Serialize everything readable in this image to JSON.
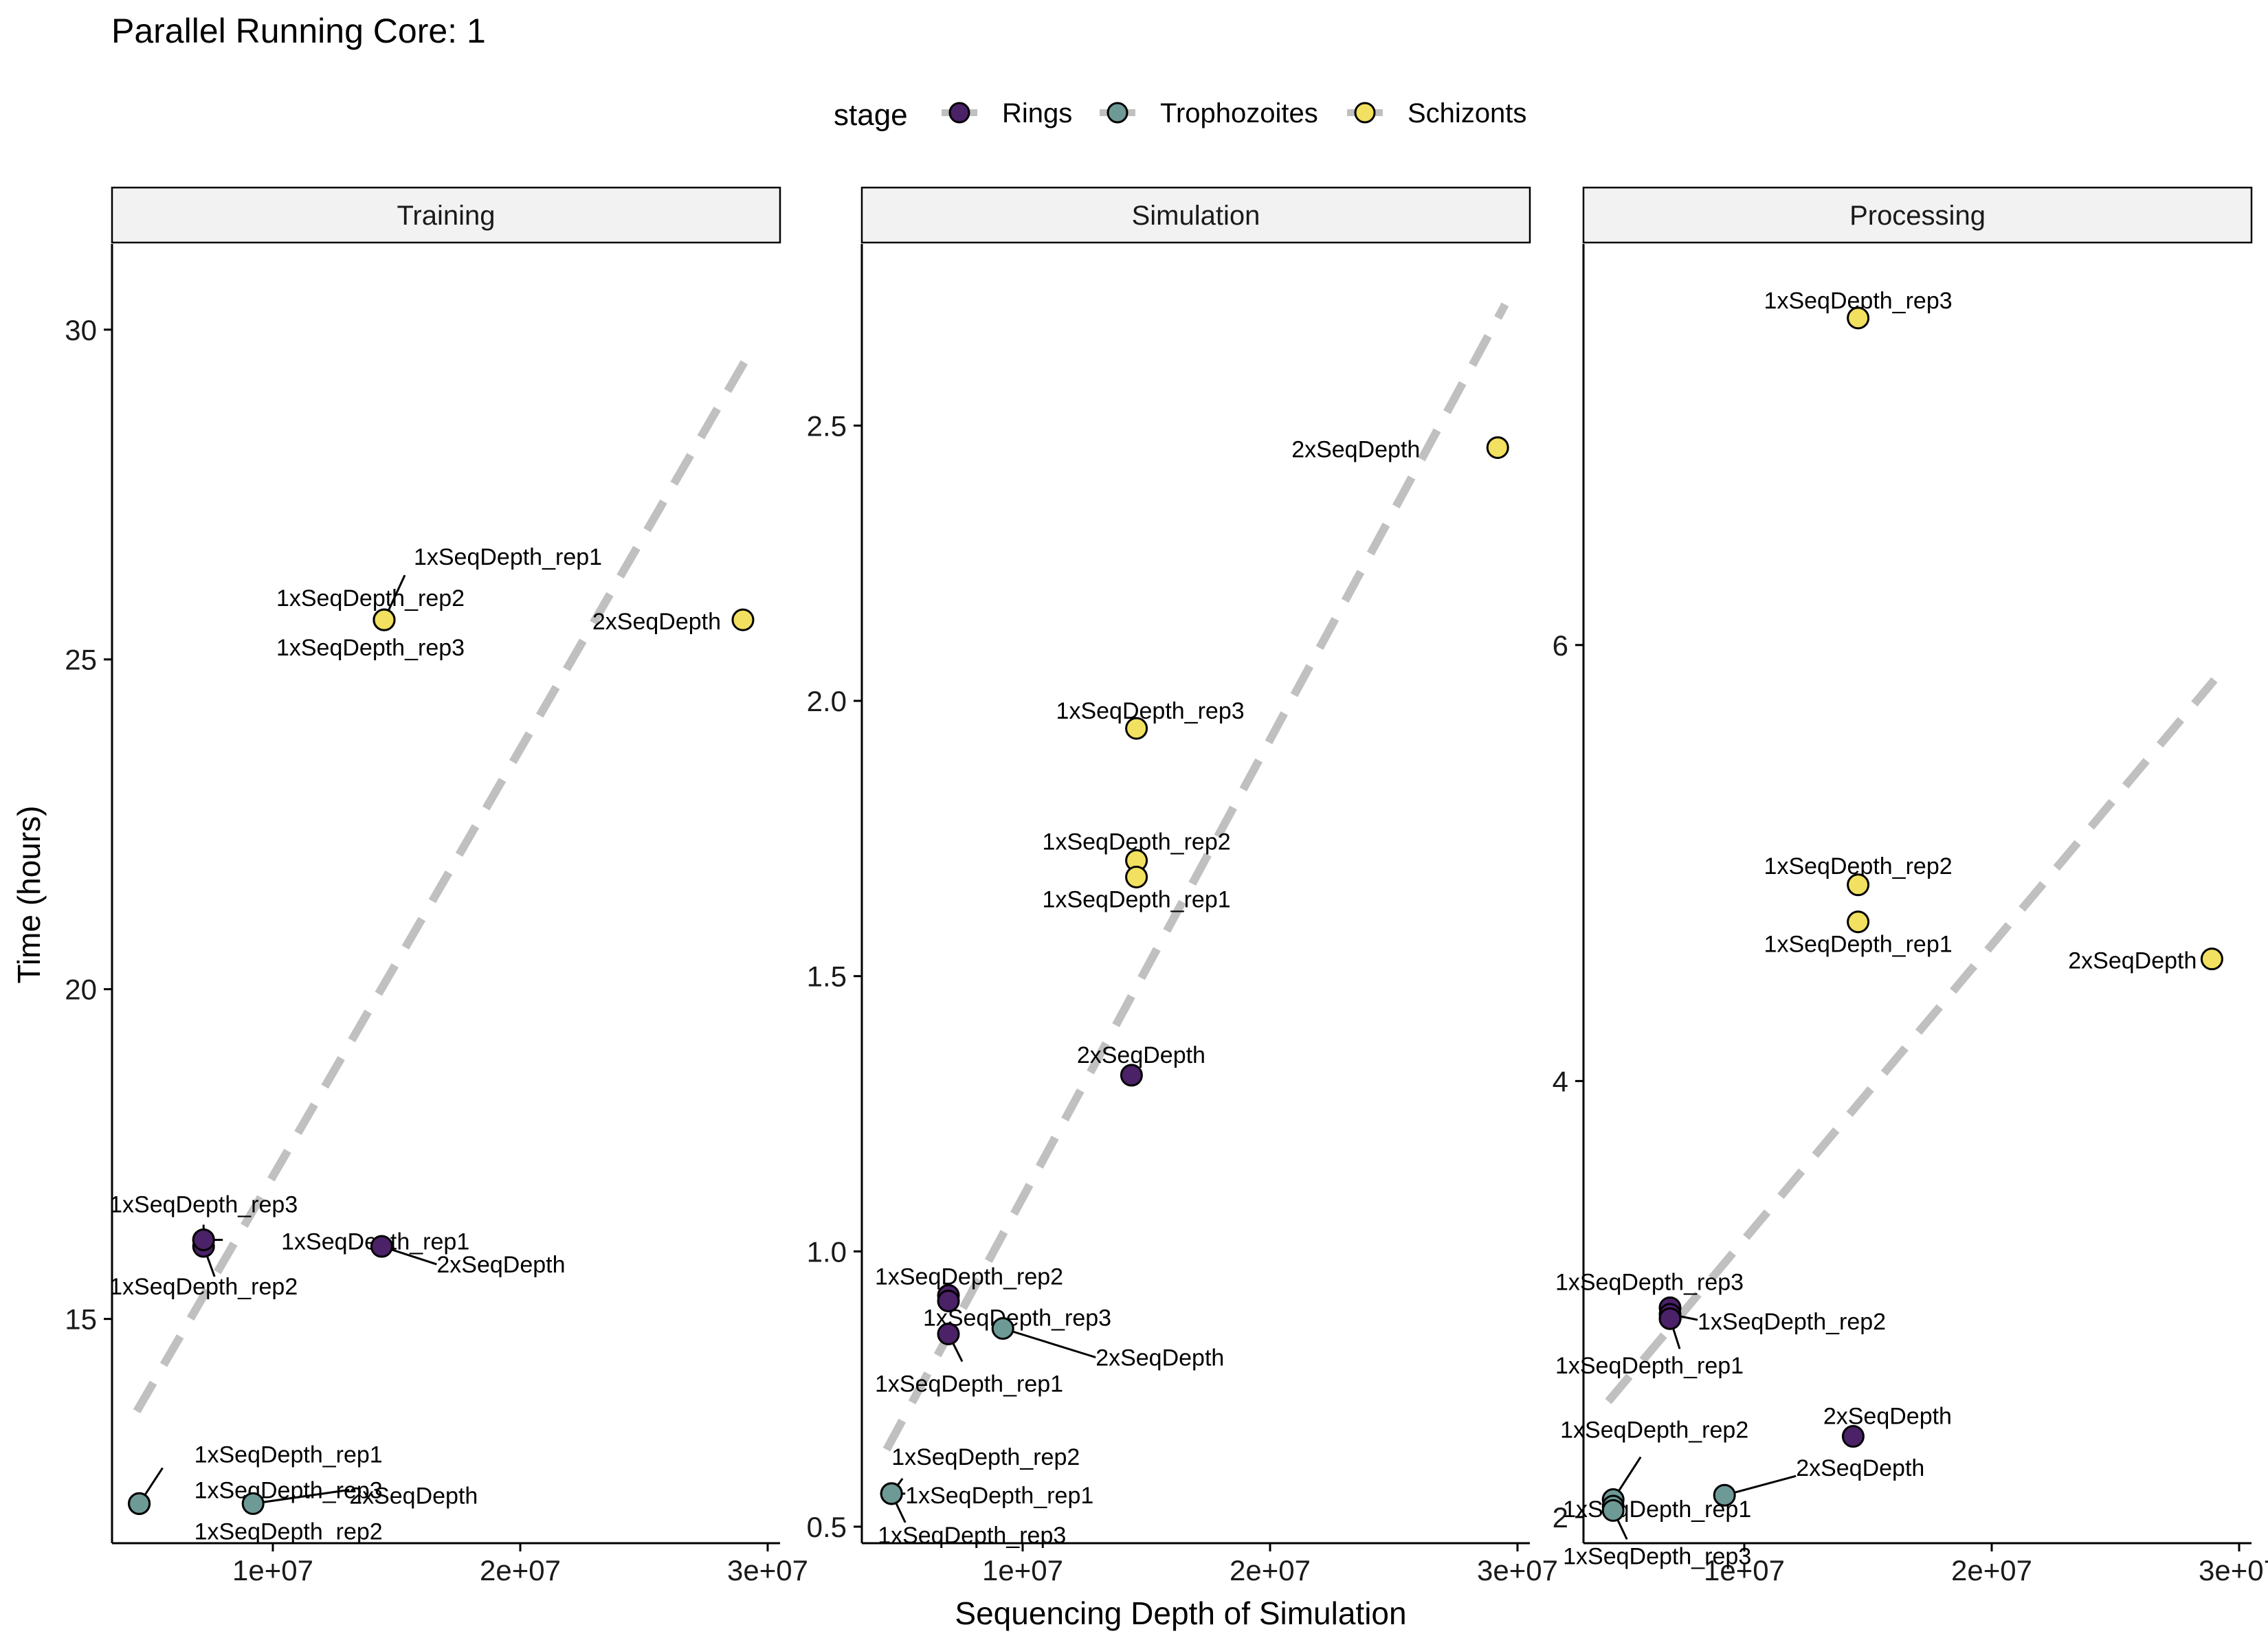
{
  "title": "Parallel Running Core: 1",
  "xlabel": "Sequencing Depth of Simulation",
  "ylabel": "Time (hours)",
  "legend": {
    "title": "stage",
    "position": "top",
    "entries": [
      {
        "name": "Rings",
        "color": "#4B2168"
      },
      {
        "name": "Trophozoites",
        "color": "#6E9A96"
      },
      {
        "name": "Schizonts",
        "color": "#F2E060"
      }
    ]
  },
  "colors": {
    "Rings": "#4B2168",
    "Trophozoites": "#6E9A96",
    "Schizonts": "#F2E060",
    "trend_line": "#C0C0C0",
    "strip_fill": "#F2F2F2"
  },
  "chart_data": [
    {
      "type": "scatter",
      "panel": "Training",
      "xlim": [
        3500000,
        30500000
      ],
      "ylim": [
        11.6,
        31.3
      ],
      "x_ticks": [
        10000000,
        20000000,
        30000000
      ],
      "x_tick_labels": [
        "1e+07",
        "2e+07",
        "3e+07"
      ],
      "y_ticks": [
        15,
        20,
        25,
        30
      ],
      "y_tick_labels": [
        "15",
        "20",
        "25",
        "30"
      ],
      "trend_line": {
        "style": "dashed",
        "x": [
          4500000,
          29200000
        ],
        "y": [
          13.6,
          29.6
        ]
      },
      "points": [
        {
          "stage": "Schizonts",
          "label": "1xSeqDepth_rep1",
          "x": 14500000,
          "y": 25.6
        },
        {
          "stage": "Schizonts",
          "label": "1xSeqDepth_rep2",
          "x": 14500000,
          "y": 25.6
        },
        {
          "stage": "Schizonts",
          "label": "1xSeqDepth_rep3",
          "x": 14500000,
          "y": 25.6
        },
        {
          "stage": "Schizonts",
          "label": "2xSeqDepth",
          "x": 29000000,
          "y": 25.6
        },
        {
          "stage": "Rings",
          "label": "1xSeqDepth_rep3",
          "x": 7200000,
          "y": 16.2
        },
        {
          "stage": "Rings",
          "label": "1xSeqDepth_rep2",
          "x": 7200000,
          "y": 16.1
        },
        {
          "stage": "Rings",
          "label": "1xSeqDepth_rep1",
          "x": 7200000,
          "y": 16.2
        },
        {
          "stage": "Rings",
          "label": "2xSeqDepth",
          "x": 14400000,
          "y": 16.1
        },
        {
          "stage": "Trophozoites",
          "label": "1xSeqDepth_rep1",
          "x": 4600000,
          "y": 12.2
        },
        {
          "stage": "Trophozoites",
          "label": "1xSeqDepth_rep3",
          "x": 4600000,
          "y": 12.2
        },
        {
          "stage": "Trophozoites",
          "label": "1xSeqDepth_rep2",
          "x": 4600000,
          "y": 12.2
        },
        {
          "stage": "Trophozoites",
          "label": "2xSeqDepth",
          "x": 9200000,
          "y": 12.2
        }
      ]
    },
    {
      "type": "scatter",
      "panel": "Simulation",
      "xlim": [
        3500000,
        30500000
      ],
      "ylim": [
        0.47,
        2.83
      ],
      "x_ticks": [
        10000000,
        20000000,
        30000000
      ],
      "x_tick_labels": [
        "1e+07",
        "2e+07",
        "3e+07"
      ],
      "y_ticks": [
        0.5,
        1.0,
        1.5,
        2.0,
        2.5
      ],
      "y_tick_labels": [
        "0.5",
        "1.0",
        "1.5",
        "2.0",
        "2.5"
      ],
      "trend_line": {
        "style": "dashed",
        "x": [
          4500000,
          29500000
        ],
        "y": [
          0.64,
          2.72
        ]
      },
      "points": [
        {
          "stage": "Schizonts",
          "label": "2xSeqDepth",
          "x": 29200000,
          "y": 2.46
        },
        {
          "stage": "Schizonts",
          "label": "1xSeqDepth_rep3",
          "x": 14600000,
          "y": 1.95
        },
        {
          "stage": "Schizonts",
          "label": "1xSeqDepth_rep2",
          "x": 14600000,
          "y": 1.71
        },
        {
          "stage": "Schizonts",
          "label": "1xSeqDepth_rep1",
          "x": 14600000,
          "y": 1.68
        },
        {
          "stage": "Rings",
          "label": "2xSeqDepth",
          "x": 14400000,
          "y": 1.32
        },
        {
          "stage": "Rings",
          "label": "1xSeqDepth_rep2",
          "x": 7000000,
          "y": 0.92
        },
        {
          "stage": "Rings",
          "label": "1xSeqDepth_rep3",
          "x": 7000000,
          "y": 0.91
        },
        {
          "stage": "Rings",
          "label": "1xSeqDepth_rep1",
          "x": 7000000,
          "y": 0.85
        },
        {
          "stage": "Trophozoites",
          "label": "2xSeqDepth",
          "x": 9200000,
          "y": 0.86
        },
        {
          "stage": "Trophozoites",
          "label": "1xSeqDepth_rep2",
          "x": 4700000,
          "y": 0.56
        },
        {
          "stage": "Trophozoites",
          "label": "1xSeqDepth_rep1",
          "x": 4700000,
          "y": 0.56
        },
        {
          "stage": "Trophozoites",
          "label": "1xSeqDepth_rep3",
          "x": 4700000,
          "y": 0.56
        }
      ]
    },
    {
      "type": "scatter",
      "panel": "Processing",
      "xlim": [
        3500000,
        30500000
      ],
      "ylim": [
        1.88,
        7.84
      ],
      "x_ticks": [
        10000000,
        20000000,
        30000000
      ],
      "x_tick_labels": [
        "1e+07",
        "2e+07",
        "3e+07"
      ],
      "y_ticks": [
        2,
        4,
        6
      ],
      "y_tick_labels": [
        "2",
        "4",
        "6"
      ],
      "trend_line": {
        "style": "dashed",
        "x": [
          4500000,
          29000000
        ],
        "y": [
          2.53,
          5.84
        ]
      },
      "points": [
        {
          "stage": "Schizonts",
          "label": "1xSeqDepth_rep3",
          "x": 14600000,
          "y": 7.5
        },
        {
          "stage": "Schizonts",
          "label": "1xSeqDepth_rep2",
          "x": 14600000,
          "y": 4.9
        },
        {
          "stage": "Schizonts",
          "label": "1xSeqDepth_rep1",
          "x": 14600000,
          "y": 4.73
        },
        {
          "stage": "Schizonts",
          "label": "2xSeqDepth",
          "x": 28900000,
          "y": 4.56
        },
        {
          "stage": "Rings",
          "label": "1xSeqDepth_rep3",
          "x": 7000000,
          "y": 2.96
        },
        {
          "stage": "Rings",
          "label": "1xSeqDepth_rep2",
          "x": 7000000,
          "y": 2.93
        },
        {
          "stage": "Rings",
          "label": "1xSeqDepth_rep1",
          "x": 7000000,
          "y": 2.91
        },
        {
          "stage": "Rings",
          "label": "2xSeqDepth",
          "x": 14400000,
          "y": 2.37
        },
        {
          "stage": "Trophozoites",
          "label": "1xSeqDepth_rep2",
          "x": 4700000,
          "y": 2.08
        },
        {
          "stage": "Trophozoites",
          "label": "1xSeqDepth_rep1",
          "x": 4700000,
          "y": 2.05
        },
        {
          "stage": "Trophozoites",
          "label": "1xSeqDepth_rep3",
          "x": 4700000,
          "y": 2.03
        },
        {
          "stage": "Trophozoites",
          "label": "2xSeqDepth",
          "x": 9200000,
          "y": 2.1
        }
      ]
    }
  ]
}
